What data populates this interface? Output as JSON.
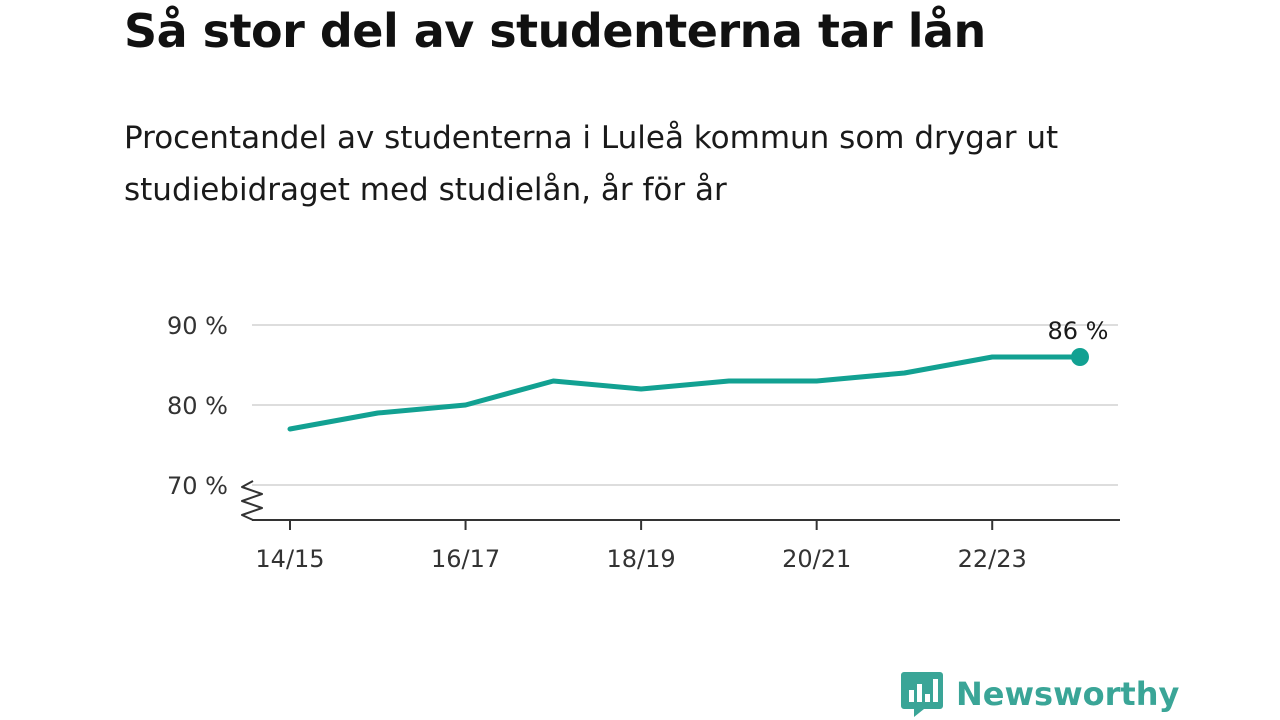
{
  "title": "Så stor del av studenterna tar lån",
  "subtitle": "Procentandel av studenterna i Luleå kommun som drygar ut studiebidraget med studielån, år för år",
  "brand": {
    "name": "Newsworthy",
    "color": "#3aa597"
  },
  "chart_data": {
    "type": "line",
    "x": [
      "14/15",
      "15/16",
      "16/17",
      "17/18",
      "18/19",
      "19/20",
      "20/21",
      "21/22",
      "22/23",
      "23/24"
    ],
    "x_tick_labels": [
      "14/15",
      "16/17",
      "18/19",
      "20/21",
      "22/23"
    ],
    "y_ticks": [
      {
        "value": 70,
        "label": "70 %"
      },
      {
        "value": 80,
        "label": "80 %"
      },
      {
        "value": 90,
        "label": "90 %"
      }
    ],
    "ylim": [
      66,
      90
    ],
    "axis_break": true,
    "grid": true,
    "series": [
      {
        "values": [
          77,
          79,
          80,
          83,
          82,
          83,
          83,
          84,
          86,
          86
        ],
        "color": "#12a192"
      }
    ],
    "last_value_label": "86 %"
  }
}
